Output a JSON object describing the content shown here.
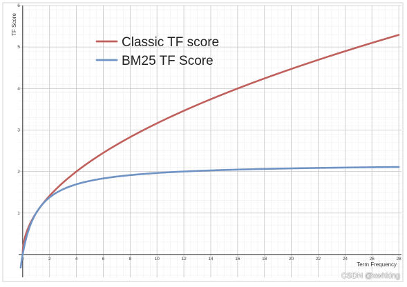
{
  "chart_data": {
    "type": "line",
    "title": "",
    "xlabel": "Term Frequency",
    "ylabel": "TF Score",
    "xlim": [
      -0.3,
      28.2
    ],
    "ylim": [
      -0.55,
      6.0
    ],
    "x_ticks": [
      0,
      2,
      4,
      6,
      8,
      10,
      12,
      14,
      16,
      18,
      20,
      22,
      24,
      26,
      28
    ],
    "y_ticks": [
      1,
      2,
      3,
      4,
      5,
      6
    ],
    "grid": true,
    "legend_position": "top-left",
    "series": [
      {
        "name": "Classic TF score",
        "color": "#c0605c",
        "formula": "sqrt(x)",
        "x": [
          0,
          0.25,
          0.5,
          1,
          1.5,
          2,
          3,
          4,
          6,
          8,
          10,
          12,
          14,
          16,
          18,
          20,
          22,
          24,
          26,
          28
        ],
        "y": [
          0,
          0.5,
          0.71,
          1,
          1.22,
          1.41,
          1.73,
          2,
          2.45,
          2.83,
          3.16,
          3.46,
          3.74,
          4,
          4.24,
          4.47,
          4.69,
          4.9,
          5.1,
          5.29
        ]
      },
      {
        "name": "BM25 TF Score",
        "color": "#6e93c4",
        "formula": "x*(k1+1)/(x+k1), k1=1.2",
        "x": [
          -0.15,
          0,
          0.25,
          0.5,
          1,
          1.5,
          2,
          3,
          4,
          6,
          8,
          10,
          12,
          14,
          16,
          18,
          20,
          22,
          24,
          26,
          28
        ],
        "y": [
          -0.5,
          0,
          0.38,
          0.65,
          1,
          1.22,
          1.38,
          1.57,
          1.69,
          1.83,
          1.91,
          1.96,
          2,
          2.03,
          2.05,
          2.06,
          2.08,
          2.09,
          2.1,
          2.1,
          2.11
        ]
      }
    ]
  },
  "watermark": "CSDN @xwhking"
}
